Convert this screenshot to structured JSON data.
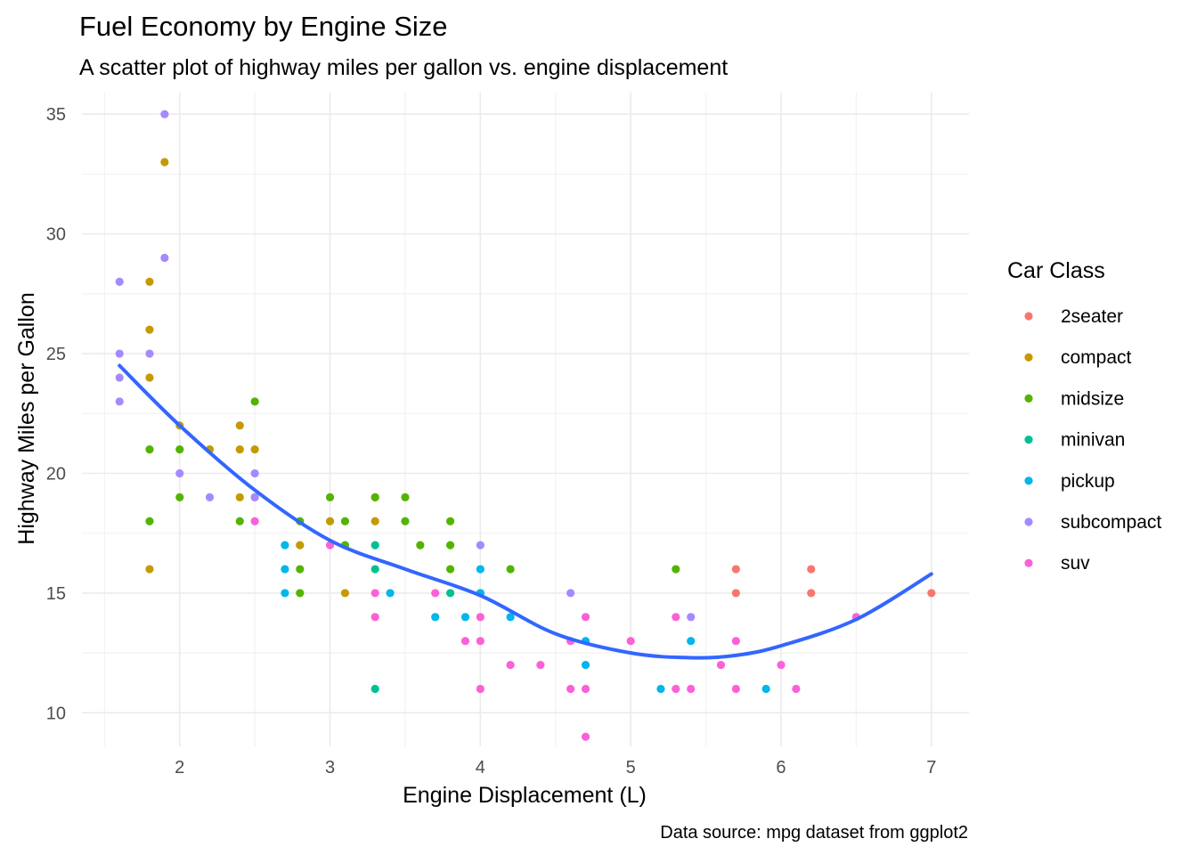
{
  "chart_data": {
    "type": "scatter",
    "title": "Fuel Economy by Engine Size",
    "subtitle": "A scatter plot of highway miles per gallon vs. engine displacement",
    "xlabel": "Engine Displacement (L)",
    "ylabel": "Highway Miles per Gallon",
    "caption": "Data source: mpg dataset from ggplot2",
    "xlim": [
      1.35,
      7.25
    ],
    "ylim": [
      8.6,
      35.9
    ],
    "x_ticks": [
      2,
      3,
      4,
      5,
      6,
      7
    ],
    "y_ticks": [
      10,
      15,
      20,
      25,
      30,
      35
    ],
    "grid": true,
    "legend": {
      "title": "Car Class",
      "position": "right"
    },
    "series": [
      {
        "name": "2seater",
        "color": "#F8766D",
        "points": [
          [
            5.7,
            16
          ],
          [
            5.7,
            15
          ],
          [
            6.2,
            16
          ],
          [
            6.2,
            15
          ],
          [
            7.0,
            15
          ]
        ]
      },
      {
        "name": "compact",
        "color": "#C49A00",
        "points": [
          [
            1.8,
            28
          ],
          [
            1.8,
            26
          ],
          [
            1.8,
            24
          ],
          [
            1.8,
            16
          ],
          [
            1.9,
            33
          ],
          [
            2.0,
            22
          ],
          [
            2.2,
            21
          ],
          [
            2.4,
            22
          ],
          [
            2.4,
            21
          ],
          [
            2.4,
            19
          ],
          [
            2.5,
            21
          ],
          [
            2.5,
            19
          ],
          [
            2.8,
            17
          ],
          [
            3.0,
            18
          ],
          [
            3.1,
            15
          ],
          [
            3.3,
            19
          ],
          [
            3.3,
            18
          ]
        ]
      },
      {
        "name": "midsize",
        "color": "#53B400",
        "points": [
          [
            1.8,
            21
          ],
          [
            1.8,
            18
          ],
          [
            2.0,
            21
          ],
          [
            2.0,
            19
          ],
          [
            2.4,
            18
          ],
          [
            2.5,
            23
          ],
          [
            2.8,
            18
          ],
          [
            2.8,
            16
          ],
          [
            2.8,
            15
          ],
          [
            3.0,
            19
          ],
          [
            3.1,
            18
          ],
          [
            3.1,
            17
          ],
          [
            3.3,
            19
          ],
          [
            3.5,
            19
          ],
          [
            3.5,
            18
          ],
          [
            3.6,
            17
          ],
          [
            3.8,
            18
          ],
          [
            3.8,
            17
          ],
          [
            3.8,
            16
          ],
          [
            4.2,
            16
          ],
          [
            5.3,
            16
          ]
        ]
      },
      {
        "name": "minivan",
        "color": "#00C094",
        "points": [
          [
            3.3,
            17
          ],
          [
            3.3,
            16
          ],
          [
            3.3,
            11
          ],
          [
            3.8,
            15
          ],
          [
            4.0,
            15
          ]
        ]
      },
      {
        "name": "pickup",
        "color": "#00B6EB",
        "points": [
          [
            2.7,
            17
          ],
          [
            2.7,
            16
          ],
          [
            2.7,
            15
          ],
          [
            3.4,
            15
          ],
          [
            3.7,
            14
          ],
          [
            3.9,
            14
          ],
          [
            4.0,
            16
          ],
          [
            4.0,
            15
          ],
          [
            4.2,
            14
          ],
          [
            4.7,
            13
          ],
          [
            4.7,
            12
          ],
          [
            5.2,
            11
          ],
          [
            5.4,
            13
          ],
          [
            5.9,
            11
          ]
        ]
      },
      {
        "name": "subcompact",
        "color": "#A58AFF",
        "points": [
          [
            1.6,
            28
          ],
          [
            1.6,
            25
          ],
          [
            1.6,
            24
          ],
          [
            1.6,
            23
          ],
          [
            1.8,
            25
          ],
          [
            1.9,
            35
          ],
          [
            1.9,
            29
          ],
          [
            2.0,
            20
          ],
          [
            2.2,
            19
          ],
          [
            2.5,
            20
          ],
          [
            2.5,
            19
          ],
          [
            4.0,
            17
          ],
          [
            4.6,
            15
          ],
          [
            5.4,
            14
          ]
        ]
      },
      {
        "name": "suv",
        "color": "#FB61D7",
        "points": [
          [
            2.5,
            18
          ],
          [
            3.0,
            17
          ],
          [
            3.3,
            15
          ],
          [
            3.3,
            14
          ],
          [
            3.7,
            15
          ],
          [
            3.9,
            13
          ],
          [
            4.0,
            14
          ],
          [
            4.0,
            13
          ],
          [
            4.0,
            11
          ],
          [
            4.2,
            12
          ],
          [
            4.4,
            12
          ],
          [
            4.6,
            13
          ],
          [
            4.6,
            11
          ],
          [
            4.7,
            14
          ],
          [
            4.7,
            11
          ],
          [
            4.7,
            9
          ],
          [
            5.0,
            13
          ],
          [
            5.3,
            14
          ],
          [
            5.3,
            11
          ],
          [
            5.4,
            11
          ],
          [
            5.6,
            12
          ],
          [
            5.7,
            13
          ],
          [
            5.7,
            11
          ],
          [
            6.0,
            12
          ],
          [
            6.1,
            11
          ],
          [
            6.5,
            14
          ]
        ]
      }
    ],
    "smooth": {
      "color": "#3366FF",
      "points": [
        [
          1.6,
          24.5
        ],
        [
          2.0,
          22.0
        ],
        [
          2.5,
          19.3
        ],
        [
          3.0,
          17.2
        ],
        [
          3.5,
          16.0
        ],
        [
          4.0,
          14.9
        ],
        [
          4.5,
          13.3
        ],
        [
          5.0,
          12.5
        ],
        [
          5.4,
          12.3
        ],
        [
          5.7,
          12.4
        ],
        [
          6.0,
          12.8
        ],
        [
          6.5,
          13.9
        ],
        [
          7.0,
          15.8
        ]
      ]
    }
  }
}
